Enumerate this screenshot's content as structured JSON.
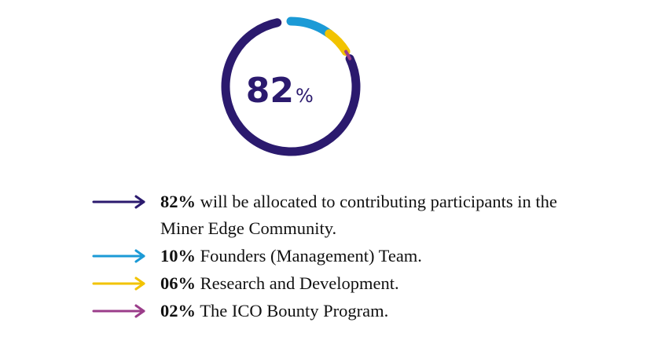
{
  "chart_data": {
    "type": "donut",
    "center_label": {
      "number": "82",
      "unit": "%"
    },
    "series": [
      {
        "value": 82,
        "color": "#2b1a6e"
      },
      {
        "value": 10,
        "color": "#1b9ad6"
      },
      {
        "value": 6,
        "color": "#f2c300"
      },
      {
        "value": 2,
        "color": "#9b3d8a"
      }
    ]
  },
  "legend": [
    {
      "percent": "82%",
      "text": "will be allocated to contributing participants in the Miner Edge Community.",
      "color": "#2b1a6e"
    },
    {
      "percent": "10%",
      "text": "Founders (Management) Team.",
      "color": "#1b9ad6"
    },
    {
      "percent": "06%",
      "text": "Research and Development.",
      "color": "#f2c300"
    },
    {
      "percent": "02%",
      "text": "The ICO Bounty Program.",
      "color": "#9b3d8a"
    }
  ]
}
